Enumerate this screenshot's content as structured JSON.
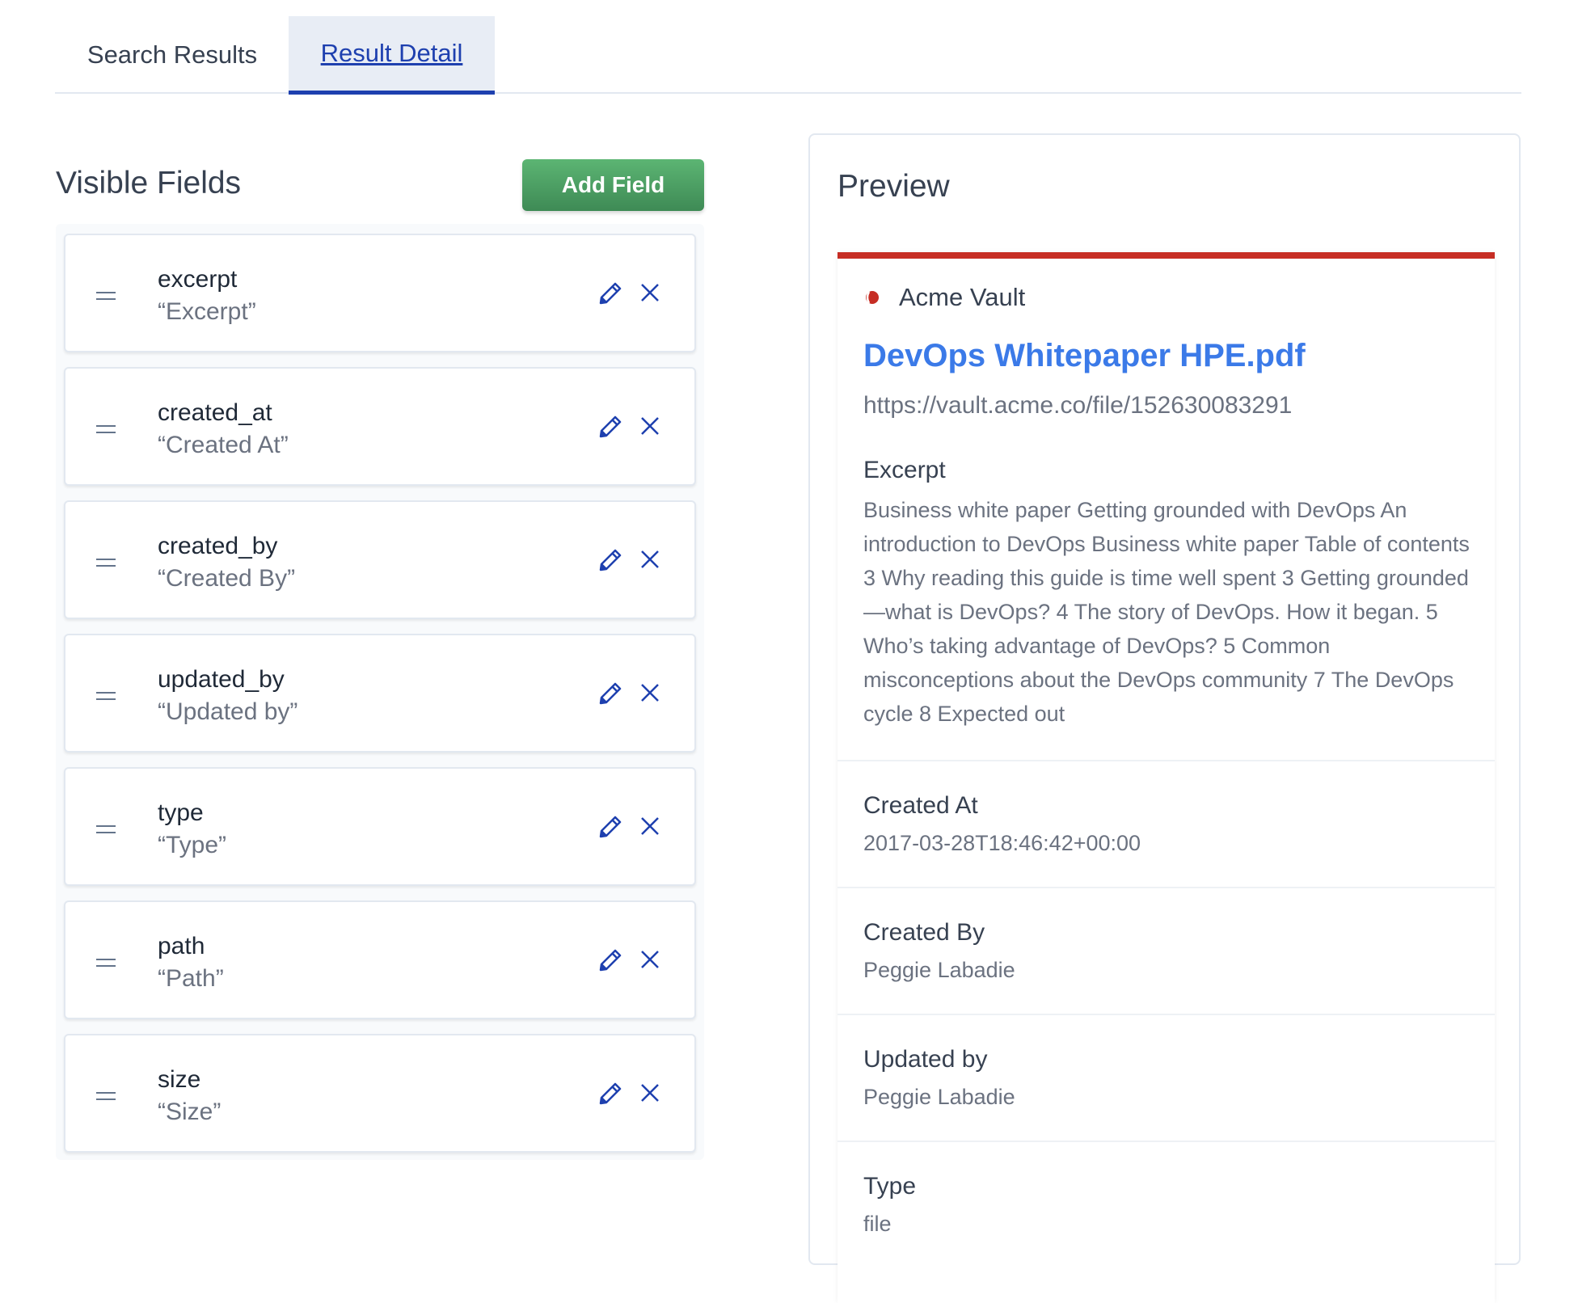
{
  "tabs": [
    {
      "label": "Search Results",
      "active": false
    },
    {
      "label": "Result Detail",
      "active": true
    }
  ],
  "visible_fields": {
    "title": "Visible Fields",
    "add_button": "Add Field",
    "fields": [
      {
        "name": "excerpt",
        "label": "“Excerpt”"
      },
      {
        "name": "created_at",
        "label": "“Created At”"
      },
      {
        "name": "created_by",
        "label": "“Created By”"
      },
      {
        "name": "updated_by",
        "label": "“Updated by”"
      },
      {
        "name": "type",
        "label": "“Type”"
      },
      {
        "name": "path",
        "label": "“Path”"
      },
      {
        "name": "size",
        "label": "“Size”"
      }
    ]
  },
  "preview": {
    "title": "Preview",
    "accent_color": "#c62d24",
    "source": "Acme Vault",
    "result_title": "DevOps Whitepaper HPE.pdf",
    "url": "https://vault.acme.co/file/152630083291",
    "excerpt_label": "Excerpt",
    "excerpt": "Business white paper Getting grounded with DevOps An introduction to DevOps Business white paper Table of contents 3 Why reading this guide is time well spent 3 Getting grounded—what is DevOps? 4 The story of DevOps. How it began. 5 Who’s taking advantage of DevOps? 5 Common misconceptions about the DevOps community 7 The DevOps cycle 8 Expected out",
    "sections": [
      {
        "label": "Created At",
        "value": "2017-03-28T18:46:42+00:00"
      },
      {
        "label": "Created By",
        "value": "Peggie Labadie"
      },
      {
        "label": "Updated by",
        "value": "Peggie Labadie"
      },
      {
        "label": "Type",
        "value": "file"
      }
    ]
  }
}
